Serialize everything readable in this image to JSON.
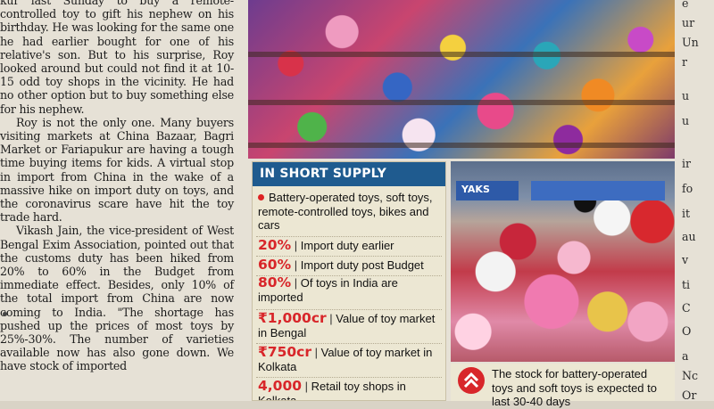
{
  "article": {
    "paragraphs": [
      "kur last Sunday to buy a remote-controlled toy to gift his nephew on his birthday. He was looking for the same one he had earlier bought for one of his relative's son. But to his surprise, Roy looked around but could not find it at 10-15 odd toy shops in the vicinity. He had no other option but to buy something else for his nephew.",
      "Roy is not the only one. Many buyers visiting markets at China Bazaar, Bagri Market or Fariapukur are having a tough time buying items for kids. A virtual stop in import from China in the wake of a massive hike on import duty on toys, and the coronavirus scare have hit the toy trade hard.",
      "Vikash Jain, the vice-president of West Bengal Exim Association, pointed out that the customs duty has been hiked from 20% to 60% in the Budget from immediate effect. Besides, only 10% of the total import from China are now coming to India. \"The shortage has pushed up the prices of most toys by 25%-30%. The number of varieties available now has also gone down. We have stock of imported"
    ]
  },
  "right_column_fragments": [
    "e",
    "ur",
    "Un",
    "r",
    "u",
    "u",
    "ir",
    "fo",
    "it",
    "au",
    "v",
    "ti",
    "C",
    "O",
    "a",
    "Nc",
    "Or"
  ],
  "box": {
    "title": "IN SHORT SUPPLY",
    "intro": "Battery-operated toys, soft toys, remote-controlled toys, bikes and cars",
    "facts": [
      {
        "figure": "20%",
        "text": "Import duty earlier"
      },
      {
        "figure": "60%",
        "text": "Import duty post Budget"
      },
      {
        "figure": "80%",
        "text": "Of toys in India are imported"
      },
      {
        "figure": "₹1,000cr",
        "text": "Value of toy market in Bengal"
      },
      {
        "figure": "₹750cr",
        "text": "Value of toy market in Kolkata"
      },
      {
        "figure": "4,000",
        "text": "Retail toy shops in Kolkata"
      }
    ]
  },
  "photo_bottom": {
    "sign_text": "YAKS"
  },
  "caption": {
    "text": "The stock for battery-operated toys and soft toys is expected to last 30-40 days"
  },
  "colors": {
    "box_header": "#1f5b8f",
    "figure_red": "#d8262a",
    "box_bg": "#ece7d3"
  }
}
